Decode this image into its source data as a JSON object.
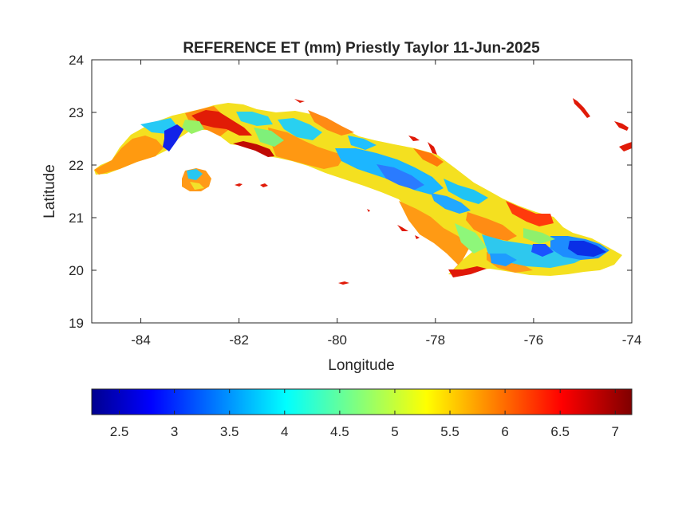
{
  "chart_data": {
    "type": "heatmap",
    "title": "REFERENCE ET (mm) Priestly Taylor 11-Jun-2025",
    "xlabel": "Longitude",
    "ylabel": "Latitude",
    "xlim": [
      -85,
      -74
    ],
    "ylim": [
      19,
      24
    ],
    "xticks": [
      "-84",
      "-82",
      "-80",
      "-78",
      "-76",
      "-74"
    ],
    "xtick_values": [
      -84,
      -82,
      -80,
      -78,
      -76,
      -74
    ],
    "yticks": [
      "19",
      "20",
      "21",
      "22",
      "23",
      "24"
    ],
    "ytick_values": [
      19,
      20,
      21,
      22,
      23,
      24
    ],
    "grid": false,
    "colormap": "jet",
    "colorbar": {
      "orientation": "horizontal",
      "placement": "below",
      "range": [
        2.25,
        7.15
      ],
      "ticks": [
        "2.5",
        "3",
        "3.5",
        "4",
        "4.5",
        "5",
        "5.5",
        "6",
        "6.5",
        "7"
      ],
      "tick_values": [
        2.5,
        3,
        3.5,
        4,
        4.5,
        5,
        5.5,
        6,
        6.5,
        7
      ]
    },
    "colors": {
      "low": "#00008f",
      "mid": "#00ffff",
      "high": "#7f0000"
    }
  }
}
